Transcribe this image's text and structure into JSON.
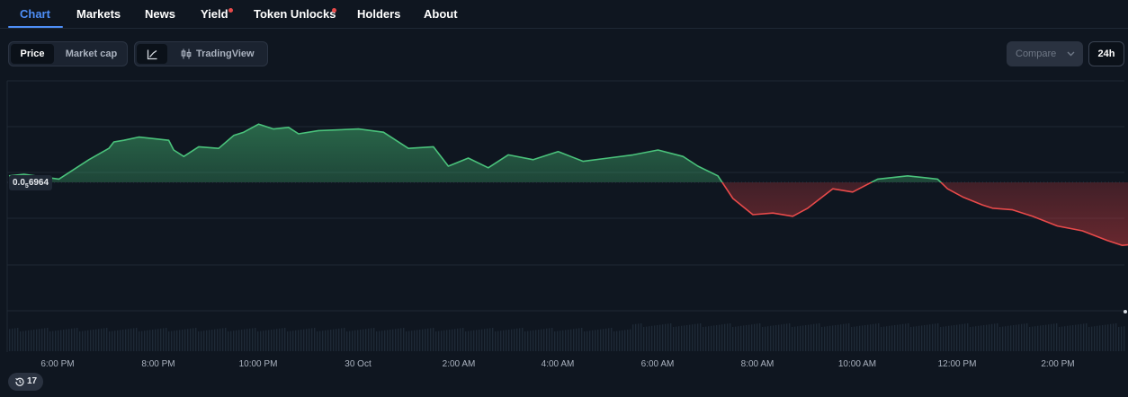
{
  "tabs": [
    {
      "label": "Chart",
      "active": true
    },
    {
      "label": "Markets"
    },
    {
      "label": "News"
    },
    {
      "label": "Yield",
      "dot": true
    },
    {
      "label": "Token Unlocks",
      "dot": true
    },
    {
      "label": "Holders"
    },
    {
      "label": "About"
    }
  ],
  "toolbar": {
    "metric_toggle": [
      "Price",
      "Market cap"
    ],
    "metric_selected": "Price",
    "chart_mode_tradingview": "TradingView",
    "compare_label": "Compare",
    "range_label": "24h"
  },
  "price_tag": {
    "prefix": "0.0",
    "sub": "5",
    "suffix": "6964"
  },
  "history_badge": {
    "count": "17"
  },
  "colors": {
    "accent": "#4d8ef7",
    "up": "#4ac27b",
    "down": "#e84a4a",
    "background": "#0f1620"
  },
  "chart_data": {
    "type": "area",
    "baseline_label": "0.0₅6964",
    "x_tick_labels": [
      "6:00 PM",
      "8:00 PM",
      "10:00 PM",
      "30 Oct",
      "2:00 AM",
      "4:00 AM",
      "6:00 AM",
      "8:00 AM",
      "10:00 AM",
      "12:00 PM",
      "2:00 PM"
    ],
    "x_hours": [
      0,
      0.3,
      1,
      1.6,
      2,
      2.1,
      2.3,
      2.6,
      3.2,
      3.3,
      3.5,
      3.8,
      4.2,
      4.5,
      4.7,
      5,
      5.1,
      5.3,
      5.6,
      5.8,
      6.2,
      7,
      7.5,
      8,
      8.5,
      8.8,
      9.2,
      9.6,
      10,
      10.5,
      11,
      11.5,
      12,
      12.5,
      13,
      13.5,
      13.8,
      14.2,
      14.5,
      14.9,
      15.3,
      15.7,
      16,
      16.5,
      16.9,
      17.4,
      18,
      18.3,
      18.6,
      18.8,
      19.1,
      19.5,
      19.7,
      20.1,
      20.5,
      21,
      21.5,
      22,
      22.3,
      22.6
    ],
    "y_delta_pct": [
      0.4,
      0.5,
      0.2,
      1.4,
      2.1,
      2.5,
      2.6,
      2.8,
      2.6,
      2.0,
      1.6,
      2.2,
      2.1,
      2.9,
      3.1,
      3.6,
      3.5,
      3.3,
      3.4,
      3.0,
      3.2,
      3.3,
      3.1,
      2.1,
      2.2,
      1.0,
      1.5,
      0.9,
      1.7,
      1.4,
      1.9,
      1.3,
      1.5,
      1.7,
      2.0,
      1.6,
      1.0,
      0.4,
      -1.0,
      -2.0,
      -1.9,
      -2.1,
      -1.6,
      -0.4,
      -0.6,
      0.2,
      0.4,
      0.3,
      0.2,
      -0.4,
      -0.9,
      -1.4,
      -1.6,
      -1.7,
      -2.1,
      -2.7,
      -3.0,
      -3.6,
      -3.9,
      -3.8
    ]
  }
}
